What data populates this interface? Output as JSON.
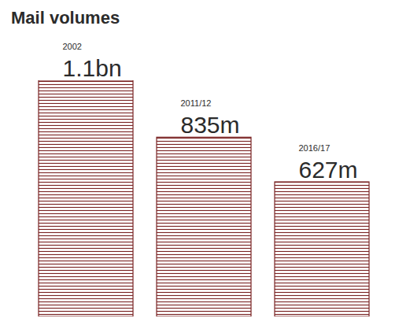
{
  "chart_data": {
    "type": "bar",
    "title": "Mail volumes",
    "categories": [
      "2002",
      "2011/12",
      "2016/17"
    ],
    "values": [
      1100,
      835,
      627
    ],
    "value_labels": [
      "1.1bn",
      "835m",
      "627m"
    ],
    "data_labels": true,
    "tick_labels": false,
    "ylim": [
      0,
      1100
    ],
    "color": "#7a2323"
  }
}
